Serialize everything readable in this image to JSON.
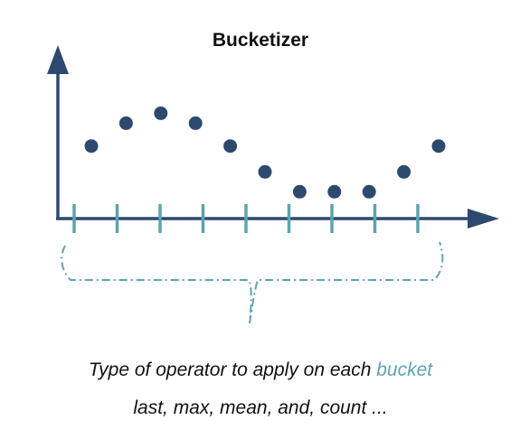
{
  "title": "Bucketizer",
  "caption": {
    "line1_prefix": "Type of operator to apply on each ",
    "line1_highlight": "bucket",
    "line2": "last, max, mean, and, count ..."
  },
  "colors": {
    "axis": "#2d4a6e",
    "point": "#2d4a6e",
    "tick": "#5ea3b0",
    "bracket": "#5ea3b0",
    "highlight": "#5ea3b0",
    "text": "#111111"
  },
  "icons": {
    "axis_arrow": "arrowhead"
  },
  "series": {
    "tick_count": 9,
    "point_levels": [
      0.23,
      0.46,
      0.56,
      0.46,
      0.23,
      -0.03,
      -0.23,
      -0.23,
      -0.23,
      -0.03,
      0.23
    ]
  }
}
